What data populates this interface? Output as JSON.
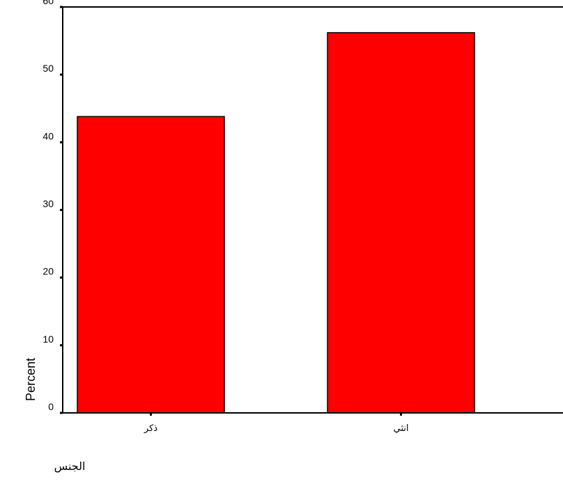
{
  "chart_data": {
    "type": "bar",
    "categories": [
      "ذكر",
      "انثي"
    ],
    "values": [
      43.8,
      56.2
    ],
    "xlabel": "الجنس",
    "ylabel": "Percent",
    "ylim": [
      0,
      60
    ],
    "yticks": [
      0,
      10,
      20,
      30,
      40,
      50,
      60
    ],
    "grid": false,
    "bar_color": "#ff0000",
    "bar_edge_color": "#000000"
  }
}
